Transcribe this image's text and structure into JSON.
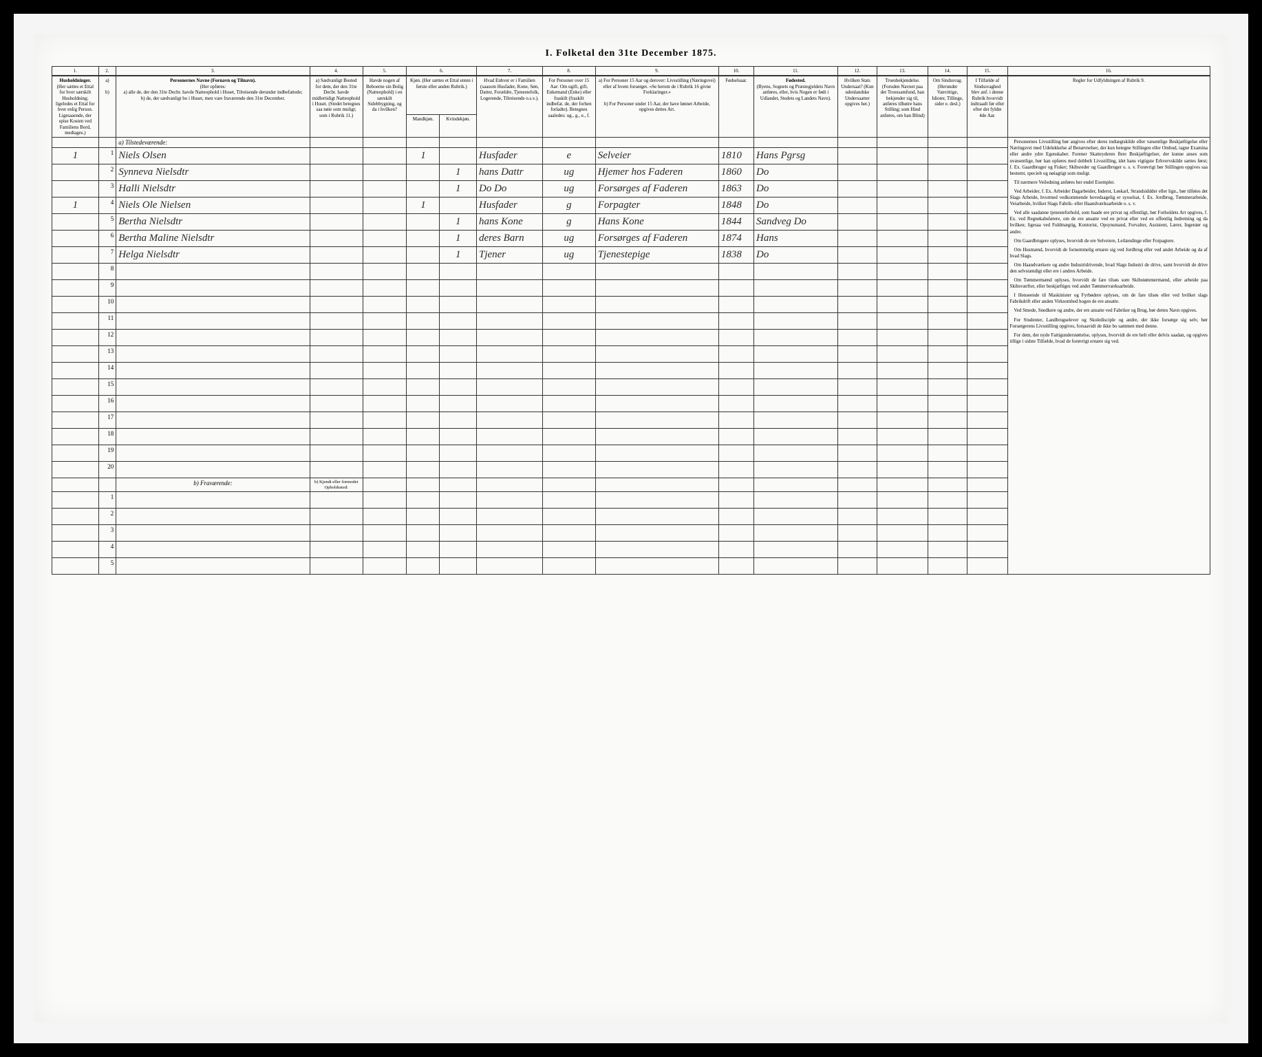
{
  "title": "I. Folketal den 31te December 1875.",
  "columns": {
    "nums": [
      "1.",
      "2.",
      "3.",
      "4.",
      "5.",
      "6.",
      "7.",
      "8.",
      "9.",
      "10.",
      "11.",
      "12.",
      "13.",
      "14.",
      "15.",
      "16."
    ],
    "h1": "Husholdninger.",
    "h1_sub": "(Her sættes et Ettal for hver særskilt Husholdning; ligeledes et Ettal for hver enlig Person.",
    "h1_sub2": "Ligesaaende, der spise Kosten ved Familiens Bord, medtages.)",
    "h2_label": "Personernes Navne (Fornavn og Tilnavn).",
    "h2_sub": "(Her opføres:",
    "h2_a": "a) alle de, der den 31te Decbr. havde Natteophold i Huset, Tilreisende derunder indbefattede;",
    "h2_b": "b) de, der sædvanligt bo i Huset, men vare fraværende den 31te December.",
    "h4": "a) Sædvanligt Bosted for dem, der den 31te Decbr. havde midlertidigt Natteophold i Huset. (Stedet betegnes saa nøie som muligt; som i Rubrik 11.)",
    "h5": "Havde nogen af Beboerne sin Bolig (Natteophold) i en særskilt Sidebbygning, og da i hvilken?",
    "h6": "Kjøn. (Her sættes et Ettal enten i første eller anden Rubrik.)",
    "h6a": "Mandkjøn.",
    "h6b": "Kvindekjøn.",
    "h7": "Hvad Enhver er i Familien (saasom Husfader, Kone, Søn, Datter, Forældre, Tjenestefolk, Logerende, Tilreisende o.s.v.).",
    "h8": "For Personer over 15 Aar: Om ugift, gift, Enkemand (Enke) eller fraskilt (fraskilt indbefat. de, der forhen forladte). Betegnes saaledes: ug., g., e., f.",
    "h9": "a) For Personer 15 Aar og derover: Livsstilling (Næringsvei) eller af hvem forsørget. «Se herom de i Rubrik 16 givne Forklaringer.»",
    "h9b": "b) For Personer under 15 Aar, der have lønnet Arbeide, opgives dettes Art.",
    "h10": "Fødselsaar.",
    "h11": "Fødested.",
    "h11_sub": "(Byens, Sognets og Præstegjeldets Navn anføres, eller, hvis Nogen er født i Udlandet, Stedets og Landets Navn).",
    "h12": "Hvilken Stats Undersaat? (Kun udenlandske Undersaatter opgives her.)",
    "h13": "Troesbekjendelse. (Foruden Navnet paa det Troessamfund, han bekjender sig til, anføres tilhøire hans Stilling; som Hind anføres, om han Blind)",
    "h14": "Om Sindssvag. (Herunder Vanvittige, Idioter, Tillinge, sider e. desl.)",
    "h15": "I Tilfælde af Sindssvaghed blev anf. i denne Rubrik hvorvidt indtraadt før eller efter det fyldte 4de Aar.",
    "h16": "Regler for Udfyldningen af Rubrik 9."
  },
  "sections": {
    "present": "a) Tilstedeværende:",
    "absent": "b) Fraværende:",
    "absent_col4": "b) Kjendt eller formodet Opholdssted:"
  },
  "rows": [
    {
      "num": "1",
      "hh": "1",
      "name": "Niels Olsen",
      "sex_m": "1",
      "sex_f": "",
      "family": "Husfader",
      "civil": "e",
      "occupation": "Selveier",
      "year": "1810",
      "birthplace": "Hans Pgrsg"
    },
    {
      "num": "2",
      "hh": "",
      "name": "Synneva Nielsdtr",
      "sex_m": "",
      "sex_f": "1",
      "family": "hans Dattr",
      "civil": "ug",
      "occupation": "Hjemer hos Faderen",
      "year": "1860",
      "birthplace": "Do"
    },
    {
      "num": "3",
      "hh": "",
      "name": "Halli Nielsdtr",
      "sex_m": "",
      "sex_f": "1",
      "family": "Do Do",
      "civil": "ug",
      "occupation": "Forsørges af Faderen",
      "year": "1863",
      "birthplace": "Do"
    },
    {
      "num": "4",
      "hh": "1",
      "name": "Niels Ole Nielsen",
      "sex_m": "1",
      "sex_f": "",
      "family": "Husfader",
      "civil": "g",
      "occupation": "Forpagter",
      "year": "1848",
      "birthplace": "Do"
    },
    {
      "num": "5",
      "hh": "",
      "name": "Bertha Nielsdtr",
      "sex_m": "",
      "sex_f": "1",
      "family": "hans Kone",
      "civil": "g",
      "occupation": "Hans Kone",
      "year": "1844",
      "birthplace": "Sandveg Do"
    },
    {
      "num": "6",
      "hh": "",
      "name": "Bertha Maline Nielsdtr",
      "sex_m": "",
      "sex_f": "1",
      "family": "deres Barn",
      "civil": "ug",
      "occupation": "Forsørges af Faderen",
      "year": "1874",
      "birthplace": "Hans"
    },
    {
      "num": "7",
      "hh": "",
      "name": "Helga Nielsdtr",
      "sex_m": "",
      "sex_f": "1",
      "family": "Tjener",
      "civil": "ug",
      "occupation": "Tjenestepige",
      "year": "1838",
      "birthplace": "Do"
    }
  ],
  "empty_rows": [
    "8",
    "9",
    "10",
    "11",
    "12",
    "13",
    "14",
    "15",
    "16",
    "17",
    "18",
    "19",
    "20"
  ],
  "absent_rows": [
    "1",
    "2",
    "3",
    "4",
    "5"
  ],
  "instructions": [
    "Personernes Livsstilling bør angives efter deres indtægtskilde eller væsentlige Beskjæftigelse eller Næringsvei med Udelukkelse af Benævnelser, der kun betegne Stillingen eller Ombud, tagne Examina eller andre ydre Egenskaber. Forener Skatteyderen flere Beskjæftigelser, der kunne anses som uvæsentlige, bør han opføres med dobbelt Livsstilling, idet hans vigtigste Erhvervskilde sættes først; f. Ex. Gaardbruger og Fisker; Skibsreder og Gaardbruger o. s. v. Forøvrigt bør Stillingen opgives saa bestemt, specielt og nøiagtigt som muligt.",
    "Til nærmere Veiledning anføres her endel Exempler.",
    "Ved Arbeider, f. Ex. Arbeider Dagarbeider, Inderst, Løskarl, Strandsiddder eller lign., bør tilføies det Slags Arbeide, hvormed vedkommende hovedsagelig er sysselsat, f. Ex. Jordbrug, Tømmerarbeide, Veiarbeide, hvilket Slags Fabrik- eller Haandværksarbeide o. s. v.",
    "Ved alle saadanne tjenesteforhold, som baade ere privat og offentligt, bør Forholdets Art opgives, f. Ex. ved Regnekabsførere, om de ere ansatte ved en privat eller ved en offentlig Indretning og da hvilken; ligesaa ved Fuldmægtig, Kontorist, Opsynsmand, Forvalter, Assistent, Lærer, Ingeniør og andre.",
    "Om Gaardbrugere oplyses, hvorvidt de ere Selveiere, Leilændinge eller Forpagtere.",
    "Om Husmænd, hvorvidt de fornemmelig ernære sig ved Jordbrug eller ved andet Arbeide og da af hvad Slags.",
    "Om Haandværkere og andre Industridrivende, hvad Slags Industri de drive, samt hvorvidt de drive den selvstændigt eller ere i andres Arbeide.",
    "Om Tømmermænd oplyses, hvorvidt de fare tilsøs som Skibstømmermænd, eller arbeide paa Skibsværfter, eller beskjæftiges ved andet Tømmerværksarbeide.",
    "I Henseende til Maskinister og Fyrbødere oplyses, om de fare tilsøs eller ved hvilket slags Fabrikdrift eller anden Virksomhed hogen de ere ansatte.",
    "Ved Smede, Snedkere og andre, der ere ansatte ved Fabriker og Brug, bør dettes Navn opgives.",
    "For Studenter, Landbrugselever og Skoledisciple og andre, der ikke forsørge sig selv, bør Forsørgerens Livsstilling opgives, forsaavidt de ikke bo sammen med denne.",
    "For dem, der nyde Fattigunderstøttelse, oplyses, hvorvidt de ere helt eller delvis saadan, og opgives tillige i sidste Tilfælde, hvad de forøvrigt ernære sig ved."
  ],
  "colors": {
    "background": "#000000",
    "page_wrap": "#f5f5f5",
    "page": "#fafaf8",
    "border": "#333333",
    "text": "#2a2a2a"
  }
}
